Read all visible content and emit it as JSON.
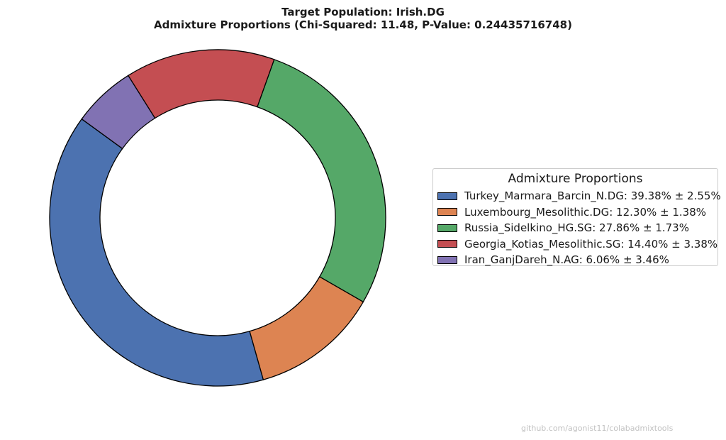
{
  "chart_data": {
    "type": "pie",
    "style": "donut",
    "title_line1": "Target Population: Irish.DG",
    "title_line2": "Admixture Proportions (Chi-Squared: 11.48, P-Value: 0.24435716748)",
    "legend_title": "Admixture Proportions",
    "legend_position": "right",
    "slices": [
      {
        "label": "Turkey_Marmara_Barcin_N.DG: 39.38% ± 2.55%",
        "value": 39.38,
        "error": 2.55,
        "color": "#4c72b0"
      },
      {
        "label": "Luxembourg_Mesolithic.DG: 12.30% ± 1.38%",
        "value": 12.3,
        "error": 1.38,
        "color": "#dd8452"
      },
      {
        "label": "Russia_Sidelkino_HG.SG: 27.86% ± 1.73%",
        "value": 27.86,
        "error": 1.73,
        "color": "#55a868"
      },
      {
        "label": "Georgia_Kotias_Mesolithic.SG: 14.40% ± 3.38%",
        "value": 14.4,
        "error": 3.38,
        "color": "#c44e52"
      },
      {
        "label": "Iran_GanjDareh_N.AG: 6.06% ± 3.46%",
        "value": 6.06,
        "error": 3.46,
        "color": "#8172b3"
      }
    ],
    "start_angle_deg": 144,
    "direction": "counterclockwise"
  },
  "watermark": "github.com/agonist11/colabadmixtools"
}
